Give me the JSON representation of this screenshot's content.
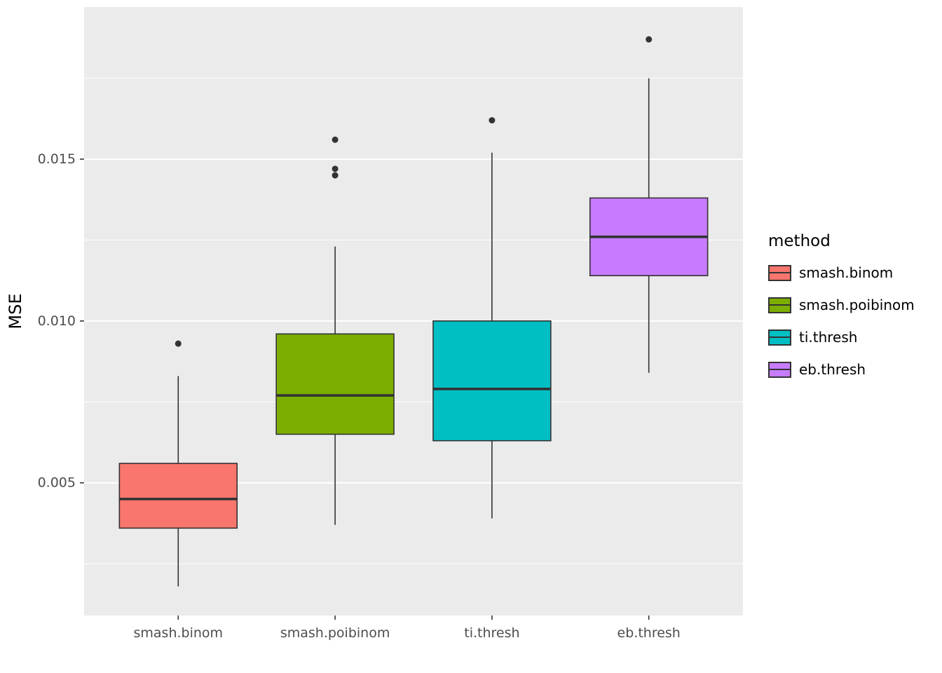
{
  "chart_data": {
    "type": "boxplot",
    "title": "",
    "xlabel": "",
    "ylabel": "MSE",
    "categories": [
      "smash.binom",
      "smash.poibinom",
      "ti.thresh",
      "eb.thresh"
    ],
    "series": [
      {
        "name": "smash.binom",
        "color": "#F8766D",
        "whisker_low": 0.0018,
        "q1": 0.0036,
        "median": 0.0045,
        "q3": 0.0056,
        "whisker_high": 0.0083,
        "outliers": [
          0.0093
        ]
      },
      {
        "name": "smash.poibinom",
        "color": "#7CAE00",
        "whisker_low": 0.0037,
        "q1": 0.0065,
        "median": 0.0077,
        "q3": 0.0096,
        "whisker_high": 0.0123,
        "outliers": [
          0.0145,
          0.0147,
          0.0156
        ]
      },
      {
        "name": "ti.thresh",
        "color": "#00BFC4",
        "whisker_low": 0.0039,
        "q1": 0.0063,
        "median": 0.0079,
        "q3": 0.01,
        "whisker_high": 0.0152,
        "outliers": [
          0.0162
        ]
      },
      {
        "name": "eb.thresh",
        "color": "#C77CFF",
        "whisker_low": 0.0084,
        "q1": 0.0114,
        "median": 0.0126,
        "q3": 0.0138,
        "whisker_high": 0.0175,
        "outliers": [
          0.0187
        ]
      }
    ],
    "y_ticks": [
      0.005,
      0.01,
      0.015
    ],
    "y_tick_labels": [
      "0.005",
      "0.010",
      "0.015"
    ],
    "y_minor_ticks": [
      0.0025,
      0.0075,
      0.0125,
      0.0175
    ],
    "ylim": [
      0.0009,
      0.0197
    ],
    "grid": true,
    "legend_position": "right",
    "panel_background": "#EBEBEB",
    "grid_color": "#FFFFFF",
    "box_stroke_color": "#333333",
    "tick_label_color": "#4D4D4D",
    "axis_title_color": "#000000",
    "legend": {
      "title": "method"
    }
  }
}
